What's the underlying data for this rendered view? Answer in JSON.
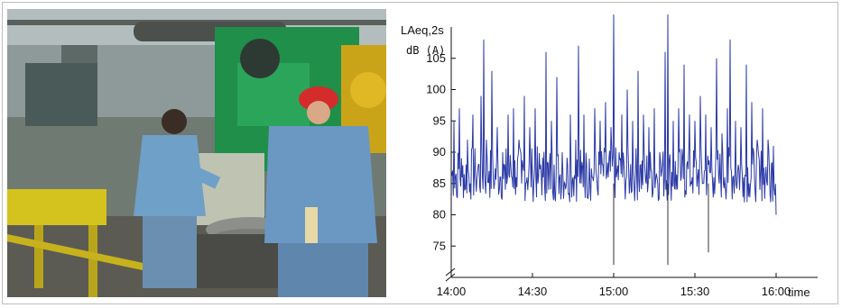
{
  "photo": {
    "description_icon": "factory-workers-photo"
  },
  "chart_data": {
    "type": "line",
    "ylabel_line1": "LAeq,2s",
    "ylabel_line2": "dB (A)",
    "xlabel": "time",
    "x_ticks": [
      "14:00",
      "14:30",
      "15:00",
      "15:30",
      "16:00"
    ],
    "y_ticks": [
      75,
      80,
      85,
      90,
      95,
      100,
      105
    ],
    "ylim": [
      70,
      110
    ],
    "xlim_minutes": [
      0,
      120
    ],
    "series": [
      {
        "color": "#2b3aa6",
        "baseline_db": 85,
        "points": [
          [
            0,
            86
          ],
          [
            1,
            95
          ],
          [
            2,
            83
          ],
          [
            3,
            97
          ],
          [
            4,
            86
          ],
          [
            5,
            84
          ],
          [
            6,
            92
          ],
          [
            7,
            85
          ],
          [
            8,
            96
          ],
          [
            9,
            86
          ],
          [
            10,
            88
          ],
          [
            11,
            99
          ],
          [
            12,
            108
          ],
          [
            13,
            92
          ],
          [
            14,
            87
          ],
          [
            15,
            103
          ],
          [
            16,
            85
          ],
          [
            17,
            94
          ],
          [
            18,
            86
          ],
          [
            19,
            90
          ],
          [
            20,
            84
          ],
          [
            21,
            96
          ],
          [
            22,
            88
          ],
          [
            23,
            97
          ],
          [
            24,
            86
          ],
          [
            25,
            92
          ],
          [
            26,
            85
          ],
          [
            27,
            99
          ],
          [
            28,
            86
          ],
          [
            29,
            94
          ],
          [
            30,
            86
          ],
          [
            31,
            97
          ],
          [
            32,
            85
          ],
          [
            33,
            88
          ],
          [
            34,
            86
          ],
          [
            35,
            106
          ],
          [
            36,
            84
          ],
          [
            37,
            95
          ],
          [
            38,
            88
          ],
          [
            39,
            102
          ],
          [
            40,
            86
          ],
          [
            41,
            90
          ],
          [
            42,
            85
          ],
          [
            43,
            88
          ],
          [
            44,
            96
          ],
          [
            45,
            86
          ],
          [
            46,
            92
          ],
          [
            47,
            107
          ],
          [
            48,
            85
          ],
          [
            49,
            96
          ],
          [
            50,
            88
          ],
          [
            51,
            89
          ],
          [
            52,
            86
          ],
          [
            53,
            97
          ],
          [
            54,
            84
          ],
          [
            55,
            95
          ],
          [
            56,
            88
          ],
          [
            57,
            98
          ],
          [
            58,
            86
          ],
          [
            59,
            94
          ],
          [
            60,
            112
          ],
          [
            61,
            86
          ],
          [
            62,
            90
          ],
          [
            63,
            96
          ],
          [
            64,
            86
          ],
          [
            65,
            100
          ],
          [
            66,
            85
          ],
          [
            67,
            95
          ],
          [
            68,
            86
          ],
          [
            69,
            103
          ],
          [
            70,
            88
          ],
          [
            71,
            96
          ],
          [
            72,
            85
          ],
          [
            73,
            94
          ],
          [
            74,
            87
          ],
          [
            75,
            97
          ],
          [
            76,
            86
          ],
          [
            77,
            90
          ],
          [
            78,
            88
          ],
          [
            79,
            106
          ],
          [
            80,
            112
          ],
          [
            81,
            86
          ],
          [
            82,
            95
          ],
          [
            83,
            84
          ],
          [
            84,
            97
          ],
          [
            85,
            86
          ],
          [
            86,
            104
          ],
          [
            87,
            88
          ],
          [
            88,
            96
          ],
          [
            89,
            86
          ],
          [
            90,
            95
          ],
          [
            91,
            86
          ],
          [
            92,
            99
          ],
          [
            93,
            85
          ],
          [
            94,
            96
          ],
          [
            95,
            88
          ],
          [
            96,
            94
          ],
          [
            97,
            86
          ],
          [
            98,
            105
          ],
          [
            99,
            85
          ],
          [
            100,
            93
          ],
          [
            101,
            86
          ],
          [
            102,
            97
          ],
          [
            103,
            108
          ],
          [
            104,
            86
          ],
          [
            105,
            95
          ],
          [
            106,
            88
          ],
          [
            107,
            94
          ],
          [
            108,
            86
          ],
          [
            109,
            104
          ],
          [
            110,
            85
          ],
          [
            111,
            98
          ],
          [
            112,
            86
          ],
          [
            113,
            92
          ],
          [
            114,
            84
          ],
          [
            115,
            97
          ],
          [
            116,
            86
          ],
          [
            117,
            92
          ],
          [
            118,
            82
          ],
          [
            119,
            91
          ],
          [
            120,
            80
          ]
        ]
      }
    ],
    "dips": [
      [
        60,
        72
      ],
      [
        80,
        72
      ],
      [
        95,
        74
      ]
    ]
  }
}
